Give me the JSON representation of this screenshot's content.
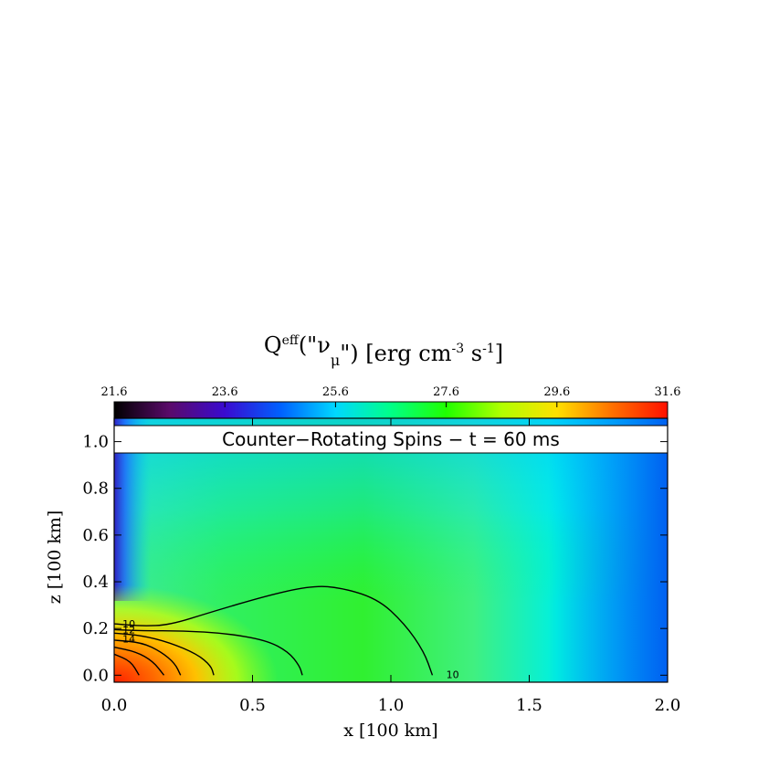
{
  "chart_data": {
    "type": "heatmap",
    "title": "Q^eff(\"ν_μ\") [erg cm^-3 s^-1]",
    "title_parts": {
      "base": "Q",
      "sup1": "eff",
      "mid": "(\"ν",
      "sub": "μ",
      "mid2": "\") [erg cm",
      "sup2": "-3",
      "mid3": " s",
      "sup3": "-1",
      "end": "]"
    },
    "banner": "Counter−Rotating Spins − t = 60 ms",
    "xlabel": "x [100 km]",
    "ylabel": "z [100 km]",
    "xlim": [
      0.0,
      2.0
    ],
    "ylim": [
      -0.03,
      1.1
    ],
    "xticks": [
      "0.0",
      "0.5",
      "1.0",
      "1.5",
      "2.0"
    ],
    "xtick_values": [
      0.0,
      0.5,
      1.0,
      1.5,
      2.0
    ],
    "yticks": [
      "0.0",
      "0.2",
      "0.4",
      "0.6",
      "0.8",
      "1.0"
    ],
    "ytick_values": [
      0.0,
      0.2,
      0.4,
      0.6,
      0.8,
      1.0
    ],
    "colorbar": {
      "min": 21.6,
      "max": 31.6,
      "ticks": [
        "21.6",
        "23.6",
        "25.6",
        "27.6",
        "29.6",
        "31.6"
      ],
      "tick_values": [
        21.6,
        23.6,
        25.6,
        27.6,
        29.6,
        31.6
      ],
      "colormap": "rainbow"
    },
    "contours": [
      {
        "level": "10",
        "points": [
          [
            0.0,
            0.22
          ],
          [
            0.1,
            0.21
          ],
          [
            0.2,
            0.215
          ],
          [
            0.35,
            0.27
          ],
          [
            0.55,
            0.34
          ],
          [
            0.7,
            0.38
          ],
          [
            0.8,
            0.38
          ],
          [
            0.95,
            0.33
          ],
          [
            1.05,
            0.22
          ],
          [
            1.12,
            0.1
          ],
          [
            1.15,
            0.0
          ]
        ]
      },
      {
        "level": "12",
        "points": [
          [
            0.0,
            0.195
          ],
          [
            0.1,
            0.19
          ],
          [
            0.25,
            0.19
          ],
          [
            0.4,
            0.18
          ],
          [
            0.55,
            0.15
          ],
          [
            0.63,
            0.1
          ],
          [
            0.67,
            0.04
          ],
          [
            0.68,
            0.0
          ]
        ]
      },
      {
        "level": "14",
        "points": [
          [
            0.0,
            0.18
          ],
          [
            0.1,
            0.17
          ],
          [
            0.2,
            0.14
          ],
          [
            0.3,
            0.09
          ],
          [
            0.35,
            0.04
          ],
          [
            0.36,
            0.0
          ]
        ]
      },
      {
        "level": "",
        "points": [
          [
            0.0,
            0.15
          ],
          [
            0.1,
            0.14
          ],
          [
            0.17,
            0.1
          ],
          [
            0.22,
            0.05
          ],
          [
            0.24,
            0.0
          ]
        ]
      },
      {
        "level": "",
        "points": [
          [
            0.0,
            0.12
          ],
          [
            0.08,
            0.1
          ],
          [
            0.14,
            0.06
          ],
          [
            0.18,
            0.0
          ]
        ]
      },
      {
        "level": "",
        "points": [
          [
            0.0,
            0.09
          ],
          [
            0.06,
            0.06
          ],
          [
            0.09,
            0.0
          ]
        ]
      }
    ],
    "contour_label_extra": {
      "level": "10",
      "x": 1.2,
      "y": 0.0
    }
  }
}
